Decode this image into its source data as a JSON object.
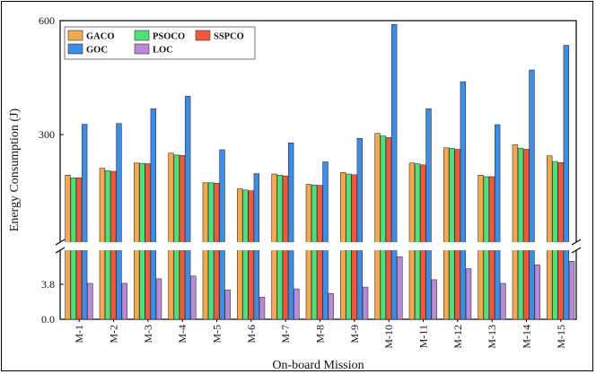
{
  "chart_data": {
    "type": "bar",
    "xlabel": "On-board Mission",
    "ylabel": "Energy Consumption (J)",
    "axis_break": true,
    "legend_position": "top-left",
    "upper_axis": {
      "ylim": [
        0,
        600
      ],
      "ticks": [
        300,
        600
      ]
    },
    "lower_axis": {
      "ylim": [
        0,
        7.6
      ],
      "ticks": [
        0.0,
        3.8
      ]
    },
    "categories": [
      "M-1",
      "M-2",
      "M-3",
      "M-4",
      "M-5",
      "M-6",
      "M-7",
      "M-8",
      "M-9",
      "M-10",
      "M-11",
      "M-12",
      "M-13",
      "M-14",
      "M-15"
    ],
    "series": [
      {
        "name": "GACO",
        "color": "#f5a94e",
        "values": [
          193,
          211,
          225,
          251,
          173,
          157,
          196,
          169,
          200,
          303,
          225,
          265,
          193,
          273,
          244
        ]
      },
      {
        "name": "PSOCO",
        "color": "#4fe07a",
        "values": [
          186,
          205,
          224,
          246,
          173,
          154,
          193,
          167,
          196,
          296,
          223,
          264,
          189,
          264,
          229
        ]
      },
      {
        "name": "SSPCO",
        "color": "#ef5a3f",
        "values": [
          186,
          203,
          223,
          245,
          172,
          152,
          191,
          166,
          194,
          292,
          220,
          261,
          189,
          261,
          226
        ]
      },
      {
        "name": "GOC",
        "color": "#3f8ce6",
        "values": [
          327,
          329,
          368,
          401,
          260,
          197,
          278,
          228,
          290,
          590,
          368,
          439,
          326,
          470,
          535
        ]
      },
      {
        "name": "LOC",
        "color": "#b98ad8",
        "values": [
          3.9,
          3.9,
          4.4,
          4.7,
          3.2,
          2.4,
          3.3,
          2.8,
          3.5,
          6.8,
          4.3,
          5.5,
          3.9,
          5.9,
          6.3
        ]
      }
    ]
  }
}
